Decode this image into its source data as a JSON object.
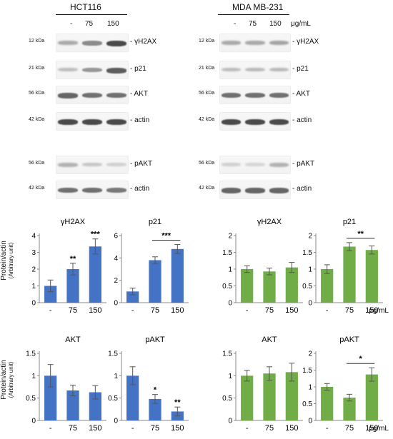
{
  "panels": {
    "left": {
      "cell_line": "HCT116",
      "doses": [
        "-",
        "75",
        "150"
      ],
      "blots": [
        {
          "mw": "12 kDa",
          "name": "- γH2AX"
        },
        {
          "mw": "21 kDa",
          "name": "- p21"
        },
        {
          "mw": "56 kDa",
          "name": "- AKT"
        },
        {
          "mw": "42 kDa",
          "name": "- actin"
        },
        {
          "mw": "56 kDa",
          "name": "- pAKT"
        },
        {
          "mw": "42 kDa",
          "name": "- actin"
        }
      ]
    },
    "right": {
      "cell_line": "MDA MB-231",
      "doses": [
        "-",
        "75",
        "150"
      ],
      "unit": "μg/mL",
      "blots": [
        {
          "mw": "12 kDa",
          "name": "- γH2AX"
        },
        {
          "mw": "21 kDa",
          "name": "- p21"
        },
        {
          "mw": "56 kDa",
          "name": "- AKT"
        },
        {
          "mw": "42 kDa",
          "name": "- actin"
        },
        {
          "mw": "56 kDa",
          "name": "- pAKT"
        },
        {
          "mw": "42 kDa",
          "name": "- actin"
        }
      ]
    }
  },
  "ylabel_line1": "Protein/actin",
  "ylabel_line2": "(Arbitrary unit)",
  "chart_data": [
    {
      "type": "bar",
      "title": "γH2AX",
      "categories": [
        "-",
        "75",
        "150"
      ],
      "values": [
        1.0,
        2.0,
        3.35
      ],
      "errors": [
        0.35,
        0.35,
        0.45
      ],
      "ylim": [
        0,
        4
      ],
      "ticks": [
        0,
        1,
        2,
        3,
        4
      ],
      "sig": [
        "",
        "**",
        "***"
      ],
      "bracket": null,
      "color": "#4472c4",
      "unit": ""
    },
    {
      "type": "bar",
      "title": "p21",
      "categories": [
        "-",
        "75",
        "150"
      ],
      "values": [
        1.0,
        3.8,
        4.8
      ],
      "errors": [
        0.3,
        0.3,
        0.4
      ],
      "ylim": [
        0,
        6
      ],
      "ticks": [
        0,
        2,
        4,
        6
      ],
      "sig": [
        "",
        "",
        ""
      ],
      "bracket": "***",
      "color": "#4472c4",
      "unit": ""
    },
    {
      "type": "bar",
      "title": "γH2AX",
      "categories": [
        "-",
        "75",
        "150"
      ],
      "values": [
        1.0,
        0.93,
        1.05
      ],
      "errors": [
        0.1,
        0.1,
        0.15
      ],
      "ylim": [
        0,
        2
      ],
      "ticks": [
        0,
        0.5,
        1,
        1.5,
        2
      ],
      "sig": [
        "",
        "",
        ""
      ],
      "bracket": null,
      "color": "#70ad47",
      "unit": ""
    },
    {
      "type": "bar",
      "title": "p21",
      "categories": [
        "-",
        "75",
        "150"
      ],
      "values": [
        1.0,
        1.67,
        1.57
      ],
      "errors": [
        0.13,
        0.12,
        0.12
      ],
      "ylim": [
        0,
        2
      ],
      "ticks": [
        0,
        0.5,
        1,
        1.5,
        2
      ],
      "sig": [
        "",
        "",
        ""
      ],
      "bracket": "**",
      "color": "#70ad47",
      "unit": "μg/mL"
    },
    {
      "type": "bar",
      "title": "AKT",
      "categories": [
        "-",
        "75",
        "150"
      ],
      "values": [
        1.0,
        0.67,
        0.63
      ],
      "errors": [
        0.25,
        0.12,
        0.15
      ],
      "ylim": [
        0,
        1.5
      ],
      "ticks": [
        0,
        0.5,
        1,
        1.5
      ],
      "sig": [
        "",
        "",
        ""
      ],
      "bracket": null,
      "color": "#4472c4",
      "unit": ""
    },
    {
      "type": "bar",
      "title": "pAKT",
      "categories": [
        "-",
        "75",
        "150"
      ],
      "values": [
        1.0,
        0.48,
        0.2
      ],
      "errors": [
        0.2,
        0.1,
        0.1
      ],
      "ylim": [
        0,
        1.5
      ],
      "ticks": [
        0,
        0.5,
        1,
        1.5
      ],
      "sig": [
        "",
        "*",
        "**"
      ],
      "bracket": null,
      "color": "#4472c4",
      "unit": ""
    },
    {
      "type": "bar",
      "title": "AKT",
      "categories": [
        "-",
        "75",
        "150"
      ],
      "values": [
        1.0,
        1.05,
        1.08
      ],
      "errors": [
        0.12,
        0.15,
        0.2
      ],
      "ylim": [
        0,
        1.5
      ],
      "ticks": [
        0,
        0.5,
        1,
        1.5
      ],
      "sig": [
        "",
        "",
        ""
      ],
      "bracket": null,
      "color": "#70ad47",
      "unit": ""
    },
    {
      "type": "bar",
      "title": "pAKT",
      "categories": [
        "-",
        "75",
        "150"
      ],
      "values": [
        1.0,
        0.68,
        1.37
      ],
      "errors": [
        0.1,
        0.1,
        0.2
      ],
      "ylim": [
        0,
        2
      ],
      "ticks": [
        0,
        0.5,
        1,
        1.5,
        2
      ],
      "sig": [
        "",
        "",
        ""
      ],
      "bracket": "*",
      "color": "#70ad47",
      "unit": "μg/mL"
    }
  ]
}
